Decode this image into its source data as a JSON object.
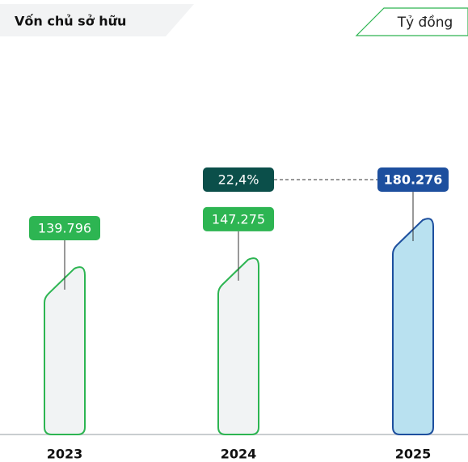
{
  "chart_data": {
    "type": "bar",
    "title": "Vốn chủ sở hữu",
    "unit": "Tỷ đồng",
    "categories": [
      "2023",
      "2024",
      "2025"
    ],
    "values": [
      139796,
      147275,
      180276
    ],
    "value_labels": [
      "139.796",
      "147.275",
      "180.276"
    ],
    "colors": [
      "#2db552",
      "#2db552",
      "#1d4f9e"
    ],
    "fills": [
      "#f1f3f4",
      "#f1f3f4",
      "#b9e1f0"
    ],
    "annotation": "22,4%",
    "annotation_color": "#0b4f4a"
  }
}
